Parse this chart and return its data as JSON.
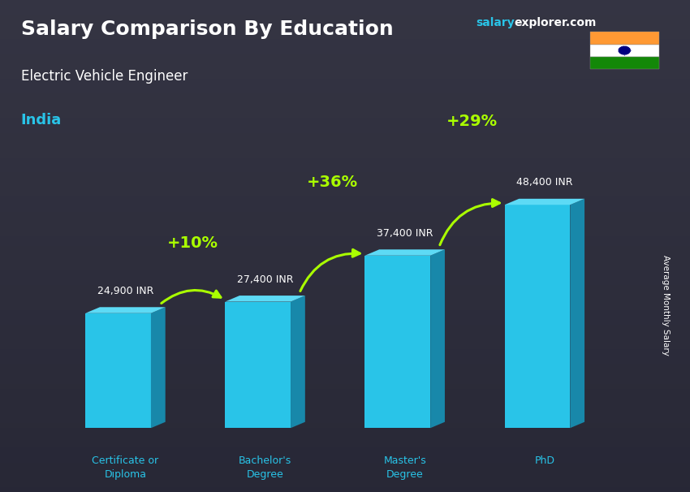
{
  "title": "Salary Comparison By Education",
  "subtitle": "Electric Vehicle Engineer",
  "country": "India",
  "website1": "salary",
  "website2": "explorer.com",
  "ylabel": "Average Monthly Salary",
  "categories": [
    "Certificate or\nDiploma",
    "Bachelor's\nDegree",
    "Master's\nDegree",
    "PhD"
  ],
  "values": [
    24900,
    27400,
    37400,
    48400
  ],
  "value_labels": [
    "24,900 INR",
    "27,400 INR",
    "37,400 INR",
    "48,400 INR"
  ],
  "pct_labels": [
    "+10%",
    "+36%",
    "+29%"
  ],
  "pct_arcs": [
    {
      "from": 0,
      "to": 1,
      "rad": 0.45
    },
    {
      "from": 1,
      "to": 2,
      "rad": 0.45
    },
    {
      "from": 2,
      "to": 3,
      "rad": 0.38
    }
  ],
  "bar_face_color": "#29c4e8",
  "bar_right_color": "#1888aa",
  "bar_top_color": "#5ddaf5",
  "bg_color": "#2a2a3a",
  "title_color": "#ffffff",
  "subtitle_color": "#ffffff",
  "country_color": "#29c4e8",
  "value_color": "#ffffff",
  "pct_color": "#aaff00",
  "arrow_color": "#aaff00",
  "cat_color": "#29c4e8",
  "website_color1": "#29c4e8",
  "website_color2": "#ffffff",
  "ylabel_color": "#ffffff"
}
